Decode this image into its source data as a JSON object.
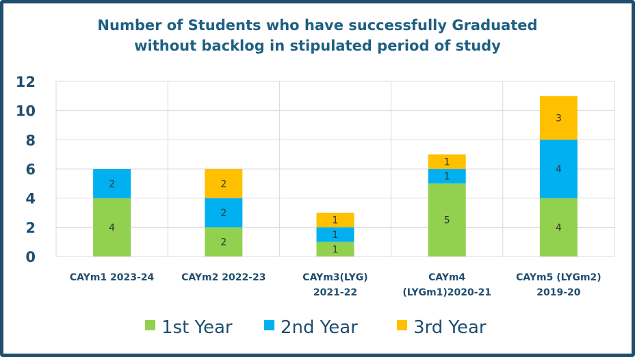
{
  "chart_data": {
    "type": "bar",
    "stacked": true,
    "title": [
      "Number of Students who have successfully Graduated",
      "without backlog in stipulated period of study"
    ],
    "categories": [
      [
        "CAYm1 2023-24"
      ],
      [
        "CAYm2 2022-23"
      ],
      [
        "CAYm3(LYG)",
        "2021-22"
      ],
      [
        "CAYm4",
        "(LYGm1)2020-21"
      ],
      [
        "CAYm5 (LYGm2)",
        "2019-20"
      ]
    ],
    "series": [
      {
        "name": "1st Year",
        "color": "#92d050",
        "values": [
          4,
          2,
          1,
          5,
          4
        ]
      },
      {
        "name": "2nd Year",
        "color": "#00b0f0",
        "values": [
          2,
          2,
          1,
          1,
          4
        ]
      },
      {
        "name": "3rd Year",
        "color": "#ffc000",
        "values": [
          0,
          2,
          1,
          1,
          3
        ]
      }
    ],
    "ylim": [
      0,
      12
    ],
    "yticks": [
      0,
      2,
      4,
      6,
      8,
      10,
      12
    ],
    "grid": true,
    "legend": "bottom"
  }
}
